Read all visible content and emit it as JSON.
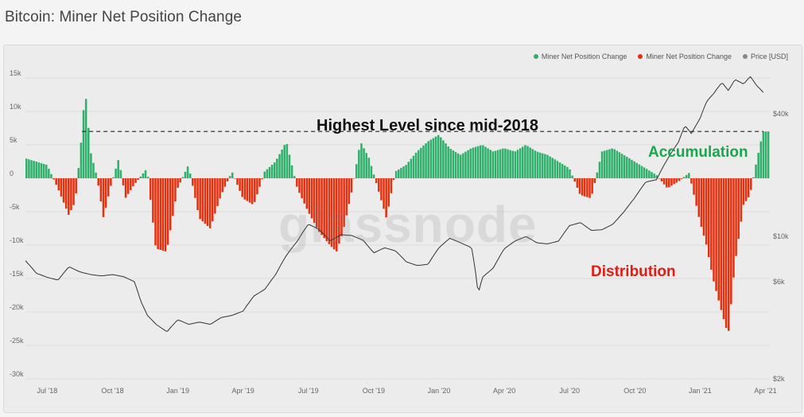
{
  "page": {
    "title": "Bitcoin: Miner Net Position Change"
  },
  "watermark": "glassnode",
  "annotations": {
    "highest": "Highest Level since mid-2018",
    "accumulation": "Accumulation",
    "distribution": "Distribution"
  },
  "colors": {
    "positive": "#2eb06a",
    "negative": "#e3300f",
    "price": "#333333",
    "grid": "#dddddd",
    "accumulation_text": "#1aa64a",
    "distribution_text": "#e41b12"
  },
  "chart_data": {
    "type": "bar",
    "legend": [
      {
        "label": "Miner Net Position Change",
        "color": "#2eb06a"
      },
      {
        "label": "Miner Net Position Change",
        "color": "#e3300f"
      },
      {
        "label": "Price [USD]",
        "color": "#888888"
      }
    ],
    "legend_position": "top-right",
    "x_tick_labels": [
      "Jul '18",
      "Oct '18",
      "Jan '19",
      "Apr '19",
      "Jul '19",
      "Oct '19",
      "Jan '20",
      "Apr '20",
      "Jul '20",
      "Oct '20",
      "Jan '21",
      "Apr '21"
    ],
    "y_left": {
      "ticks": [
        15000,
        10000,
        5000,
        0,
        -5000,
        -10000,
        -15000,
        -20000,
        -25000,
        -30000
      ],
      "labels": [
        "15k",
        "10k",
        "5k",
        "0",
        "-5k",
        "-10k",
        "-15k",
        "-20k",
        "-25k",
        "-30k"
      ],
      "range": [
        -30000,
        15000
      ]
    },
    "y_right": {
      "scale": "log",
      "ticks": [
        40000,
        10000,
        6000,
        2000
      ],
      "labels": [
        "$40k",
        "$10k",
        "$6k",
        "$2k"
      ],
      "range": [
        2000,
        60000
      ]
    },
    "reference_line": {
      "value": 7000,
      "style": "dashed",
      "from_month": 2.6,
      "to_month": 33.9
    },
    "series": [
      {
        "name": "Miner Net Position Change",
        "unit": "BTC",
        "points": [
          [
            0.0,
            3000
          ],
          [
            0.5,
            2500
          ],
          [
            1.0,
            2000
          ],
          [
            1.5,
            -1500
          ],
          [
            2.0,
            -5500
          ],
          [
            2.3,
            -3500
          ],
          [
            2.6,
            6500
          ],
          [
            2.75,
            13500
          ],
          [
            3.0,
            4000
          ],
          [
            3.3,
            200
          ],
          [
            3.6,
            -6000
          ],
          [
            3.9,
            -1500
          ],
          [
            4.3,
            3000
          ],
          [
            4.6,
            -3000
          ],
          [
            5.0,
            -1000
          ],
          [
            5.6,
            1500
          ],
          [
            6.0,
            -10500
          ],
          [
            6.5,
            -11000
          ],
          [
            7.0,
            -1500
          ],
          [
            7.5,
            2000
          ],
          [
            8.0,
            -6000
          ],
          [
            8.5,
            -7500
          ],
          [
            9.0,
            -2500
          ],
          [
            9.5,
            1000
          ],
          [
            10.0,
            -3000
          ],
          [
            10.5,
            -4000
          ],
          [
            11.0,
            1000
          ],
          [
            11.5,
            2500
          ],
          [
            12.0,
            5500
          ],
          [
            12.5,
            -1500
          ],
          [
            13.0,
            -5000
          ],
          [
            13.5,
            -8000
          ],
          [
            14.0,
            -10000
          ],
          [
            14.3,
            -11000
          ],
          [
            14.6,
            -8000
          ],
          [
            15.0,
            -2000
          ],
          [
            15.4,
            5500
          ],
          [
            15.8,
            3000
          ],
          [
            16.2,
            -1500
          ],
          [
            16.6,
            -6000
          ],
          [
            17.0,
            1000
          ],
          [
            17.5,
            2000
          ],
          [
            18.0,
            4000
          ],
          [
            18.5,
            5500
          ],
          [
            19.0,
            6500
          ],
          [
            19.5,
            4500
          ],
          [
            20.0,
            3500
          ],
          [
            20.5,
            4500
          ],
          [
            21.0,
            5000
          ],
          [
            21.5,
            4000
          ],
          [
            22.0,
            4500
          ],
          [
            22.5,
            4000
          ],
          [
            23.0,
            5000
          ],
          [
            23.5,
            4000
          ],
          [
            24.0,
            3500
          ],
          [
            24.5,
            2500
          ],
          [
            25.0,
            1500
          ],
          [
            25.5,
            -2500
          ],
          [
            26.0,
            -3000
          ],
          [
            26.5,
            4000
          ],
          [
            27.0,
            4500
          ],
          [
            27.5,
            3500
          ],
          [
            28.0,
            2500
          ],
          [
            28.5,
            1500
          ],
          [
            29.0,
            500
          ],
          [
            29.5,
            -1500
          ],
          [
            30.0,
            -500
          ],
          [
            30.5,
            800
          ],
          [
            31.0,
            -6500
          ],
          [
            31.3,
            -10000
          ],
          [
            31.6,
            -15000
          ],
          [
            32.0,
            -20000
          ],
          [
            32.3,
            -23500
          ],
          [
            32.6,
            -13000
          ],
          [
            33.0,
            -4000
          ],
          [
            33.3,
            -2500
          ],
          [
            33.6,
            2500
          ],
          [
            33.9,
            7000
          ]
        ]
      },
      {
        "name": "Price [USD]",
        "unit": "USD",
        "points": [
          [
            0.0,
            7600
          ],
          [
            0.5,
            6600
          ],
          [
            1.0,
            6300
          ],
          [
            1.5,
            6100
          ],
          [
            2.0,
            7100
          ],
          [
            2.5,
            6700
          ],
          [
            3.0,
            6500
          ],
          [
            3.5,
            6400
          ],
          [
            4.0,
            6500
          ],
          [
            4.5,
            6350
          ],
          [
            5.0,
            6000
          ],
          [
            5.3,
            4800
          ],
          [
            5.6,
            4100
          ],
          [
            6.0,
            3700
          ],
          [
            6.5,
            3400
          ],
          [
            7.0,
            3900
          ],
          [
            7.5,
            3700
          ],
          [
            8.0,
            3800
          ],
          [
            8.5,
            3700
          ],
          [
            9.0,
            4000
          ],
          [
            9.5,
            4100
          ],
          [
            10.0,
            4300
          ],
          [
            10.5,
            5100
          ],
          [
            11.0,
            5500
          ],
          [
            11.5,
            6500
          ],
          [
            12.0,
            8100
          ],
          [
            12.5,
            9500
          ],
          [
            13.0,
            11500
          ],
          [
            13.5,
            10800
          ],
          [
            14.0,
            9500
          ],
          [
            14.5,
            10200
          ],
          [
            15.0,
            10100
          ],
          [
            15.5,
            9600
          ],
          [
            16.0,
            8300
          ],
          [
            16.5,
            8800
          ],
          [
            17.0,
            8500
          ],
          [
            17.5,
            7500
          ],
          [
            18.0,
            7200
          ],
          [
            18.5,
            7300
          ],
          [
            19.0,
            8800
          ],
          [
            19.5,
            9800
          ],
          [
            20.0,
            9300
          ],
          [
            20.5,
            8800
          ],
          [
            20.8,
            5200
          ],
          [
            21.0,
            6300
          ],
          [
            21.5,
            7000
          ],
          [
            22.0,
            8700
          ],
          [
            22.5,
            9500
          ],
          [
            23.0,
            10000
          ],
          [
            23.5,
            9300
          ],
          [
            24.0,
            9200
          ],
          [
            24.5,
            9500
          ],
          [
            25.0,
            11300
          ],
          [
            25.5,
            11700
          ],
          [
            26.0,
            10700
          ],
          [
            26.5,
            10800
          ],
          [
            27.0,
            11500
          ],
          [
            27.5,
            13200
          ],
          [
            28.0,
            15500
          ],
          [
            28.5,
            18500
          ],
          [
            29.0,
            19000
          ],
          [
            29.5,
            24000
          ],
          [
            30.0,
            29000
          ],
          [
            30.3,
            35000
          ],
          [
            30.6,
            32000
          ],
          [
            31.0,
            38000
          ],
          [
            31.3,
            46000
          ],
          [
            31.6,
            50000
          ],
          [
            32.0,
            57000
          ],
          [
            32.3,
            52000
          ],
          [
            32.6,
            59000
          ],
          [
            33.0,
            56000
          ],
          [
            33.3,
            61000
          ],
          [
            33.6,
            55000
          ],
          [
            33.9,
            51000
          ]
        ]
      }
    ]
  }
}
